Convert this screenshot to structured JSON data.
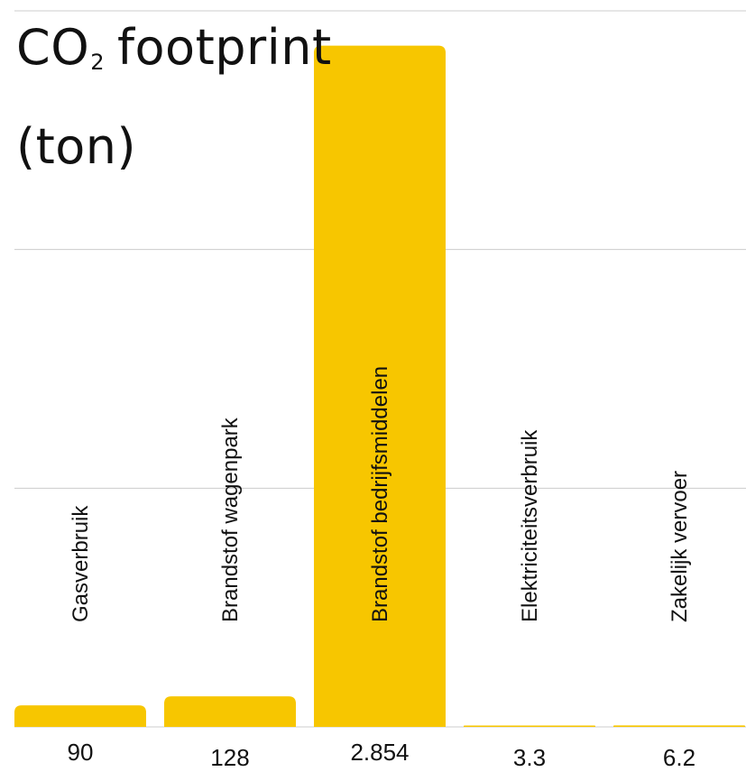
{
  "chart_data": {
    "type": "bar",
    "title": {
      "prefix": "CO",
      "subscript": "2",
      "line1_suffix": "footprint",
      "line2": "(ton)"
    },
    "categories": [
      "Gasverbruik",
      "Brandstof wagenpark",
      "Brandstof bedrijfsmiddelen",
      "Elektriciteitsverbruik",
      "Zakelijk vervoer"
    ],
    "values": [
      90,
      128,
      2854,
      3.3,
      6.2
    ],
    "value_labels": [
      "90",
      "128",
      "2.854",
      "3.3",
      "6.2"
    ],
    "ylim": [
      0,
      3000
    ],
    "gridlines": [
      0,
      1000,
      2000,
      3000
    ],
    "grid": true,
    "bar_color": "#f7c600",
    "grid_color": "#cccccc",
    "text_color": "#111111"
  }
}
